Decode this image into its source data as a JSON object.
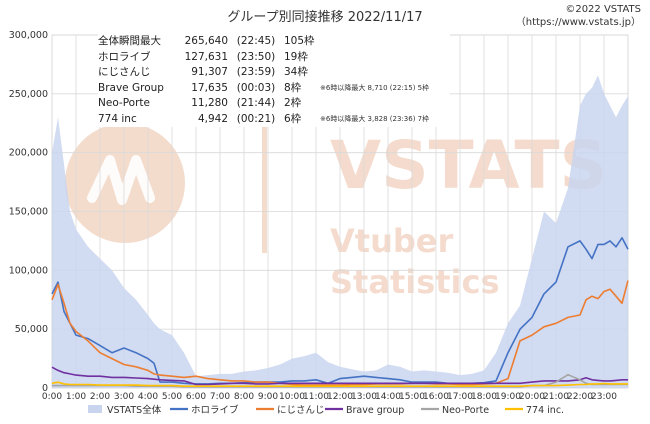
{
  "title": "グループ別同接推移 2022/11/17",
  "credit_line1": "©2022 VSTATS",
  "credit_line2": "（https://www.vstats.jp）",
  "watermark": {
    "brand": "VSTATS",
    "line1": "Vtuber",
    "line2": "Statistics",
    "color": "#f0cdb8"
  },
  "stats_table": [
    {
      "name": "全体瞬間最大",
      "value": "265,640",
      "time": "(22:45)",
      "frames": "105枠",
      "note": ""
    },
    {
      "name": "ホロライブ",
      "value": "127,631",
      "time": "(23:50)",
      "frames": "19枠",
      "note": ""
    },
    {
      "name": "にじさんじ",
      "value": "91,307",
      "time": "(23:59)",
      "frames": "34枠",
      "note": ""
    },
    {
      "name": "Brave Group",
      "value": "17,635",
      "time": "(00:03)",
      "frames": "8枠",
      "note": "※6時以降最大 8,710 (22:15) 5枠"
    },
    {
      "name": "Neo-Porte",
      "value": "11,280",
      "time": "(21:44)",
      "frames": "2枠",
      "note": ""
    },
    {
      "name": "774 inc",
      "value": "4,942",
      "time": "(00:21)",
      "frames": "6枠",
      "note": "※6時以降最大 3,828 (23:36) 7枠"
    }
  ],
  "chart_data": {
    "type": "area",
    "x_hours": [
      0,
      0.25,
      0.5,
      0.75,
      1,
      1.5,
      2,
      2.5,
      3,
      3.5,
      4,
      4.25,
      4.5,
      5,
      5.5,
      6,
      6.5,
      7,
      7.5,
      8,
      8.5,
      9,
      9.5,
      10,
      10.5,
      11,
      11.5,
      12,
      12.5,
      13,
      13.5,
      14,
      14.5,
      15,
      15.5,
      16,
      16.5,
      17,
      17.5,
      18,
      18.5,
      19,
      19.5,
      20,
      20.5,
      21,
      21.5,
      22,
      22.25,
      22.5,
      22.75,
      23,
      23.25,
      23.5,
      23.75,
      24
    ],
    "x_ticks": [
      "0:00",
      "1:00",
      "2:00",
      "3:00",
      "4:00",
      "5:00",
      "6:00",
      "7:00",
      "8:00",
      "9:00",
      "10:00",
      "11:00",
      "12:00",
      "13:00",
      "14:00",
      "15:00",
      "16:00",
      "17:00",
      "18:00",
      "19:00",
      "20:00",
      "21:00",
      "22:00",
      "23:00"
    ],
    "ylim": [
      0,
      300000
    ],
    "y_ticks": [
      "0",
      "50,000",
      "100,000",
      "150,000",
      "200,000",
      "250,000",
      "300,000"
    ],
    "series": [
      {
        "name": "VSTATS全体",
        "kind": "area",
        "color": "#c9d5ef",
        "values": [
          200000,
          230000,
          190000,
          150000,
          135000,
          120000,
          110000,
          100000,
          85000,
          75000,
          62000,
          55000,
          50000,
          45000,
          30000,
          10000,
          11000,
          12000,
          12000,
          14000,
          15000,
          17000,
          20000,
          25000,
          27000,
          30000,
          22000,
          18000,
          16000,
          14000,
          15000,
          20000,
          18000,
          14000,
          15000,
          14000,
          13000,
          11000,
          12000,
          15000,
          30000,
          55000,
          70000,
          110000,
          150000,
          140000,
          170000,
          240000,
          250000,
          255000,
          265640,
          250000,
          240000,
          230000,
          240000,
          248000
        ]
      },
      {
        "name": "ホロライブ",
        "kind": "line",
        "color": "#4472c4",
        "values": [
          80000,
          90000,
          65000,
          55000,
          45000,
          42000,
          36000,
          30000,
          34000,
          30000,
          25000,
          21000,
          5000,
          5000,
          4000,
          3500,
          3500,
          4000,
          4000,
          4500,
          5000,
          5000,
          5000,
          6000,
          6000,
          7000,
          4000,
          8000,
          9000,
          10000,
          9000,
          8000,
          7000,
          5000,
          5000,
          5000,
          4000,
          4000,
          4000,
          4500,
          6000,
          30000,
          50000,
          60000,
          80000,
          90000,
          120000,
          125000,
          118000,
          110000,
          122000,
          122000,
          125000,
          120000,
          127631,
          118000
        ]
      },
      {
        "name": "にじさんじ",
        "kind": "line",
        "color": "#ed7d31",
        "values": [
          75000,
          88000,
          72000,
          55000,
          48000,
          40000,
          30000,
          25000,
          20000,
          18000,
          15000,
          12000,
          11000,
          10000,
          9000,
          10000,
          8000,
          7000,
          6000,
          6000,
          5000,
          5000,
          4000,
          3000,
          2500,
          2500,
          2500,
          2500,
          3000,
          3000,
          3500,
          3500,
          3500,
          4000,
          4000,
          3500,
          3500,
          3000,
          3000,
          3500,
          4000,
          8000,
          40000,
          45000,
          52000,
          55000,
          60000,
          62000,
          75000,
          78000,
          76000,
          82000,
          84000,
          78000,
          72000,
          91307
        ]
      },
      {
        "name": "Brave group",
        "kind": "line",
        "color": "#7030a0",
        "values": [
          17635,
          15000,
          13000,
          12000,
          11000,
          10000,
          10000,
          9000,
          9000,
          8500,
          8000,
          7500,
          7000,
          6500,
          6000,
          3000,
          3000,
          3500,
          4000,
          4000,
          3500,
          3500,
          4000,
          4000,
          4000,
          4000,
          4000,
          4000,
          4000,
          4000,
          4000,
          4000,
          4000,
          4000,
          4000,
          4000,
          4000,
          4000,
          4000,
          4000,
          4000,
          4000,
          4000,
          5000,
          6000,
          6000,
          6000,
          7000,
          8710,
          7000,
          6500,
          6000,
          6000,
          6500,
          7000,
          7000
        ]
      },
      {
        "name": "Neo-Porte",
        "kind": "line",
        "color": "#a5a5a5",
        "values": [
          2000,
          2000,
          2000,
          2000,
          2000,
          2000,
          2000,
          2000,
          2000,
          1500,
          1500,
          1500,
          1500,
          1500,
          1000,
          1000,
          1000,
          1000,
          1000,
          1000,
          1000,
          1000,
          1000,
          1000,
          1000,
          1000,
          1000,
          1000,
          1000,
          1000,
          1000,
          1000,
          1000,
          1000,
          1000,
          1000,
          1000,
          1000,
          1000,
          1000,
          1000,
          1000,
          1000,
          2000,
          2000,
          5000,
          11280,
          7000,
          4000,
          3000,
          3000,
          3000,
          3000,
          3000,
          3000,
          3000
        ]
      },
      {
        "name": "774 inc.",
        "kind": "line",
        "color": "#ffc000",
        "values": [
          4000,
          4942,
          3500,
          3000,
          3000,
          3000,
          2500,
          2500,
          2500,
          2500,
          2000,
          2000,
          2000,
          2000,
          1500,
          1500,
          1500,
          1500,
          1500,
          1500,
          1500,
          1500,
          1500,
          1500,
          1500,
          1500,
          1500,
          1500,
          1500,
          1500,
          1500,
          1500,
          1500,
          1500,
          1500,
          1500,
          1500,
          1500,
          1500,
          1500,
          1500,
          1500,
          1500,
          2000,
          2000,
          2000,
          2500,
          3000,
          3000,
          3500,
          3500,
          3828,
          3500,
          3500,
          3500,
          3500
        ]
      }
    ],
    "legend_position": "bottom",
    "grid": true
  }
}
